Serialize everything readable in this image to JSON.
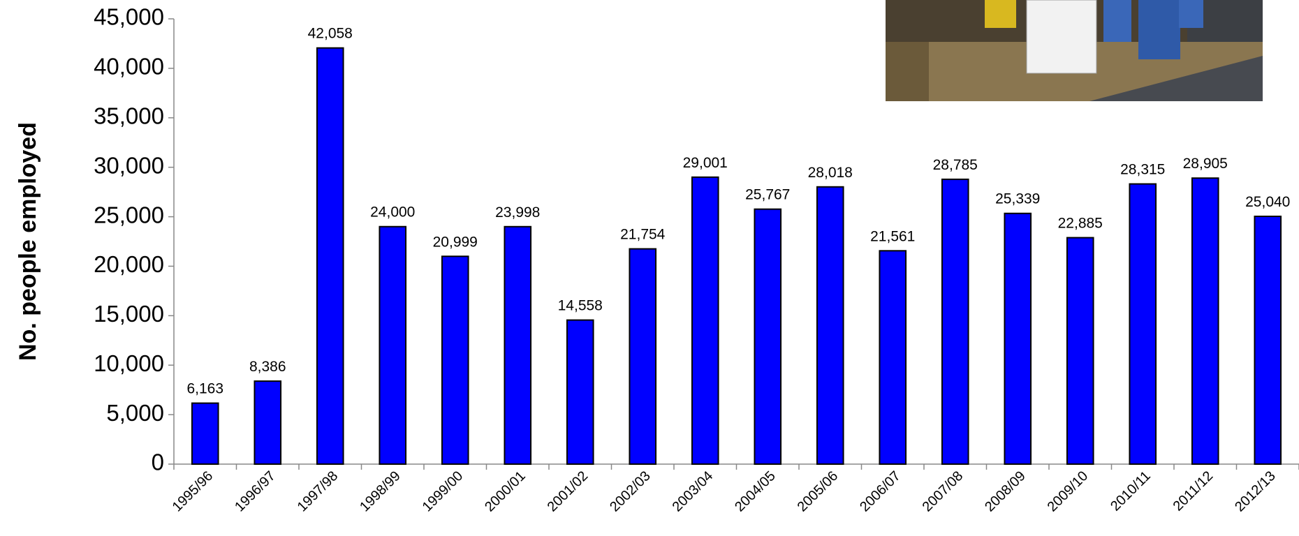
{
  "chart_data": {
    "type": "bar",
    "y_label": "No. people employed",
    "categories": [
      "1995/96",
      "1996/97",
      "1997/98",
      "1998/99",
      "1999/00",
      "2000/01",
      "2001/02",
      "2002/03",
      "2003/04",
      "2004/05",
      "2005/06",
      "2006/07",
      "2007/08",
      "2008/09",
      "2009/10",
      "2010/11",
      "2011/12",
      "2012/13"
    ],
    "values": [
      6163,
      8386,
      42058,
      24000,
      20999,
      23998,
      14558,
      21754,
      29001,
      25767,
      28018,
      21561,
      28785,
      25339,
      22885,
      28315,
      28905,
      25040
    ],
    "value_labels": [
      "6,163",
      "8,386",
      "42,058",
      "24,000",
      "20,999",
      "23,998",
      "14,558",
      "21,754",
      "29,001",
      "25,767",
      "28,018",
      "21,561",
      "28,785",
      "25,339",
      "22,885",
      "28,315",
      "28,905",
      "25,040"
    ],
    "color": "#0000ff",
    "ylim": [
      0,
      45000
    ],
    "yticks": [
      0,
      {
        "value": 5000,
        "label": "5,000"
      },
      {
        "value": 10000,
        "label": "10,000"
      },
      {
        "value": 15000,
        "label": "15,000"
      },
      {
        "value": 20000,
        "label": "20,000"
      },
      {
        "value": 25000,
        "label": "25,000"
      },
      {
        "value": 30000,
        "label": "30,000"
      },
      {
        "value": 35000,
        "label": "35,000"
      },
      {
        "value": 40000,
        "label": "40,000"
      },
      {
        "value": 45000,
        "label": "45,000"
      }
    ],
    "grid": false
  }
}
